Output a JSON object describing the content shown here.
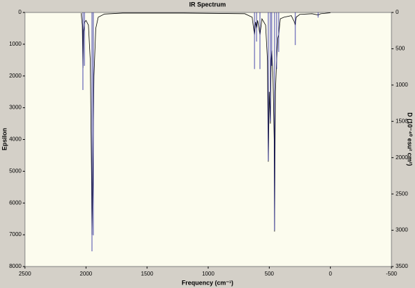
{
  "chart_data": {
    "type": "line",
    "title": "IR Spectrum",
    "x_label": "Frequency (cm⁻¹)",
    "y_label": "Epsilon",
    "y2_label": "D (10⁻⁴⁰ esu² cm²)",
    "xlim": [
      2500,
      -500
    ],
    "xticks": [
      2500,
      2000,
      1500,
      1000,
      500,
      0,
      -500
    ],
    "ylim": [
      8000,
      0
    ],
    "yticks": [
      0,
      1000,
      2000,
      3000,
      4000,
      5000,
      6000,
      7000,
      8000
    ],
    "y2lim": [
      3500,
      0
    ],
    "y2ticks": [
      0,
      500,
      1000,
      1500,
      2000,
      2500,
      3000,
      3500
    ],
    "series": [
      {
        "style": "line",
        "color": "#000000",
        "x": [
          2040,
          2030,
          2025,
          2020,
          2010,
          2000,
          1980,
          1965,
          1955,
          1951,
          1945,
          1935,
          1920,
          1900,
          1850,
          1700,
          1200,
          700,
          640,
          621,
          612,
          604,
          595,
          576,
          560,
          530,
          515,
          508,
          500,
          491,
          485,
          480,
          470,
          460,
          457,
          450,
          440,
          430,
          423,
          410,
          380,
          320,
          295,
          287,
          280,
          250,
          200,
          150,
          100,
          80,
          50,
          0
        ],
        "values": [
          20,
          400,
          1750,
          600,
          300,
          250,
          400,
          1500,
          5000,
          7000,
          5500,
          2000,
          500,
          150,
          50,
          20,
          20,
          40,
          150,
          700,
          300,
          500,
          250,
          700,
          200,
          400,
          1500,
          4700,
          2500,
          3500,
          1500,
          1200,
          2000,
          4000,
          6900,
          2500,
          1500,
          800,
          700,
          200,
          150,
          100,
          300,
          400,
          150,
          60,
          50,
          40,
          80,
          40,
          30,
          10
        ]
      },
      {
        "style": "stick",
        "axis": "y2",
        "color": "#1a1a9a",
        "x": [
          2025,
          2013,
          1951,
          1940,
          621,
          604,
          576,
          508,
          491,
          480,
          457,
          440,
          423,
          287,
          100
        ],
        "values": [
          1068,
          735,
          3290,
          3070,
          780,
          400,
          780,
          2040,
          1500,
          735,
          3000,
          780,
          545,
          450,
          70
        ]
      }
    ]
  }
}
